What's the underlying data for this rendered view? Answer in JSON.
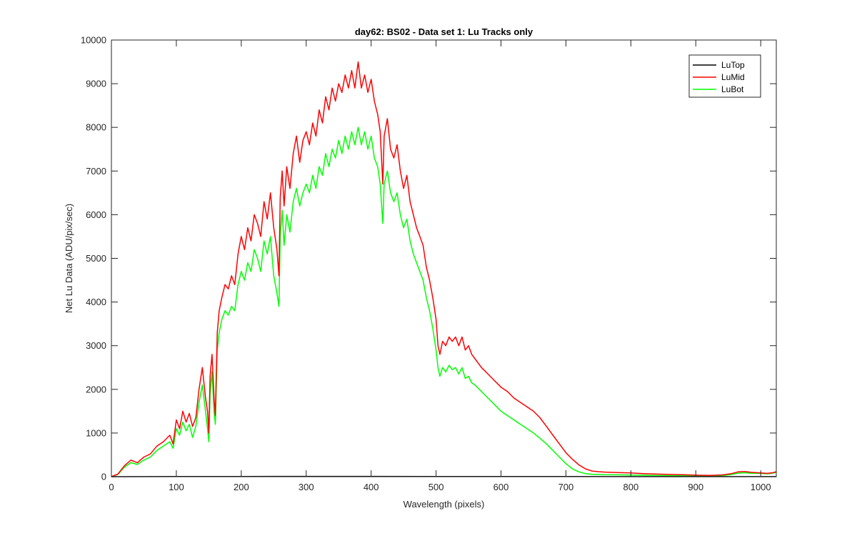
{
  "chart_data": {
    "type": "line",
    "title": "day62: BS02 - Data set 1: Lu Tracks only",
    "xlabel": "Wavelength (pixels)",
    "ylabel": "Net Lu Data (ADU/pix/sec)",
    "xlim": [
      0,
      1024
    ],
    "ylim": [
      0,
      10000
    ],
    "xticks": [
      0,
      100,
      200,
      300,
      400,
      500,
      600,
      700,
      800,
      900,
      1000
    ],
    "yticks": [
      0,
      1000,
      2000,
      3000,
      4000,
      5000,
      6000,
      7000,
      8000,
      9000,
      10000
    ],
    "grid": false,
    "legend_position": "top-right",
    "series": [
      {
        "name": "LuTop",
        "color": "#000000",
        "x": [
          0,
          100,
          200,
          300,
          400,
          500,
          600,
          700,
          800,
          900,
          1000,
          1024
        ],
        "y": [
          0,
          3,
          5,
          6,
          6,
          5,
          4,
          3,
          2,
          2,
          2,
          2
        ]
      },
      {
        "name": "LuMid",
        "color": "#ff0000",
        "x": [
          0,
          10,
          20,
          30,
          40,
          50,
          60,
          70,
          80,
          90,
          95,
          100,
          105,
          110,
          115,
          120,
          125,
          130,
          135,
          140,
          145,
          148,
          150,
          152,
          155,
          158,
          160,
          163,
          166,
          170,
          175,
          180,
          185,
          190,
          195,
          200,
          205,
          210,
          215,
          220,
          225,
          230,
          235,
          240,
          245,
          250,
          255,
          258,
          260,
          263,
          266,
          270,
          275,
          280,
          285,
          290,
          295,
          300,
          305,
          310,
          315,
          320,
          325,
          330,
          335,
          340,
          345,
          350,
          355,
          360,
          365,
          370,
          375,
          380,
          385,
          390,
          395,
          400,
          405,
          410,
          414,
          418,
          420,
          425,
          430,
          435,
          440,
          445,
          450,
          455,
          460,
          465,
          470,
          475,
          480,
          485,
          490,
          495,
          500,
          503,
          506,
          510,
          515,
          520,
          525,
          530,
          535,
          540,
          545,
          550,
          555,
          560,
          570,
          580,
          590,
          600,
          610,
          620,
          630,
          640,
          650,
          660,
          670,
          680,
          690,
          700,
          710,
          720,
          730,
          740,
          750,
          760,
          780,
          800,
          820,
          850,
          880,
          900,
          920,
          940,
          955,
          965,
          975,
          985,
          1000,
          1010,
          1020,
          1024
        ],
        "y": [
          0,
          60,
          250,
          380,
          320,
          450,
          520,
          700,
          800,
          950,
          750,
          1300,
          1100,
          1500,
          1250,
          1450,
          1150,
          1350,
          2000,
          2500,
          1800,
          1500,
          1000,
          2300,
          2800,
          1800,
          1400,
          3300,
          3800,
          4100,
          4400,
          4300,
          4600,
          4400,
          5100,
          5500,
          5200,
          5700,
          5400,
          6000,
          5800,
          5500,
          6300,
          5900,
          6500,
          5700,
          5200,
          4600,
          6400,
          7000,
          6200,
          7100,
          6600,
          7400,
          7800,
          7200,
          7700,
          7900,
          7600,
          8100,
          7800,
          8400,
          8100,
          8700,
          8400,
          8900,
          8600,
          9000,
          8800,
          9200,
          8900,
          9300,
          8900,
          9500,
          8900,
          9200,
          8800,
          9100,
          8600,
          8300,
          7900,
          6700,
          7800,
          8200,
          7500,
          7300,
          7600,
          7000,
          6600,
          6900,
          6300,
          6000,
          5700,
          5500,
          5300,
          4800,
          4500,
          4100,
          3600,
          3000,
          2800,
          3100,
          3000,
          3200,
          3100,
          3200,
          3000,
          3200,
          2900,
          3000,
          2800,
          2700,
          2500,
          2350,
          2200,
          2050,
          1950,
          1800,
          1700,
          1600,
          1500,
          1350,
          1150,
          950,
          750,
          550,
          400,
          270,
          180,
          130,
          115,
          105,
          95,
          85,
          70,
          55,
          45,
          35,
          30,
          40,
          70,
          110,
          120,
          100,
          85,
          75,
          95,
          115
        ]
      },
      {
        "name": "LuBot",
        "color": "#00ff00",
        "x": [
          0,
          10,
          20,
          30,
          40,
          50,
          60,
          70,
          80,
          90,
          95,
          100,
          105,
          110,
          115,
          120,
          125,
          130,
          135,
          140,
          145,
          148,
          150,
          152,
          155,
          158,
          160,
          163,
          166,
          170,
          175,
          180,
          185,
          190,
          195,
          200,
          205,
          210,
          215,
          220,
          225,
          230,
          235,
          240,
          245,
          250,
          255,
          258,
          260,
          263,
          266,
          270,
          275,
          280,
          285,
          290,
          295,
          300,
          305,
          310,
          315,
          320,
          325,
          330,
          335,
          340,
          345,
          350,
          355,
          360,
          365,
          370,
          375,
          380,
          385,
          390,
          395,
          400,
          405,
          410,
          414,
          418,
          420,
          425,
          430,
          435,
          440,
          445,
          450,
          455,
          460,
          465,
          470,
          475,
          480,
          485,
          490,
          495,
          500,
          503,
          506,
          510,
          515,
          520,
          525,
          530,
          535,
          540,
          545,
          550,
          555,
          560,
          570,
          580,
          590,
          600,
          610,
          620,
          630,
          640,
          650,
          660,
          670,
          680,
          690,
          700,
          710,
          720,
          730,
          740,
          750,
          760,
          780,
          800,
          820,
          850,
          880,
          900,
          920,
          940,
          955,
          965,
          975,
          985,
          1000,
          1010,
          1020,
          1024
        ],
        "y": [
          0,
          50,
          220,
          320,
          280,
          380,
          450,
          600,
          700,
          800,
          650,
          1100,
          950,
          1250,
          1050,
          1200,
          900,
          1150,
          1700,
          2100,
          1500,
          1100,
          800,
          1900,
          2400,
          1500,
          1200,
          2900,
          3300,
          3600,
          3800,
          3700,
          3900,
          3800,
          4400,
          4700,
          4500,
          4900,
          4700,
          5200,
          5000,
          4700,
          5400,
          5100,
          5500,
          4600,
          4200,
          3900,
          5500,
          6100,
          5300,
          6000,
          5600,
          6300,
          6600,
          6200,
          6500,
          6700,
          6500,
          6900,
          6600,
          7100,
          6900,
          7400,
          7100,
          7500,
          7300,
          7700,
          7400,
          7800,
          7500,
          7900,
          7600,
          8000,
          7600,
          7900,
          7500,
          7800,
          7300,
          7100,
          6700,
          5800,
          6700,
          7000,
          6500,
          6300,
          6500,
          6000,
          5700,
          5900,
          5400,
          5100,
          4900,
          4700,
          4500,
          4100,
          3800,
          3400,
          2900,
          2500,
          2300,
          2500,
          2400,
          2550,
          2450,
          2500,
          2350,
          2500,
          2250,
          2300,
          2150,
          2100,
          1950,
          1800,
          1650,
          1500,
          1400,
          1300,
          1200,
          1100,
          1000,
          880,
          750,
          600,
          450,
          300,
          180,
          110,
          70,
          55,
          50,
          45,
          42,
          38,
          32,
          25,
          20,
          15,
          12,
          20,
          50,
          80,
          90,
          80,
          75,
          65,
          85,
          100
        ]
      }
    ]
  }
}
